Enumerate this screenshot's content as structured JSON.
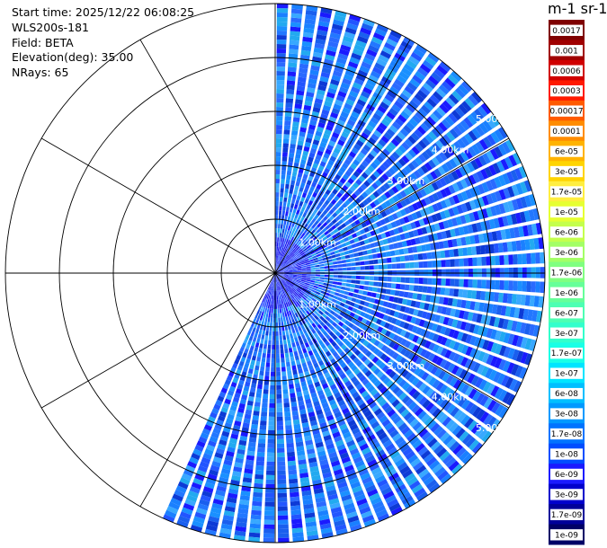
{
  "info": {
    "start_time": "Start time: 2025/12/22 06:08:25",
    "instrument": "WLS200s-181",
    "field": "Field: BETA",
    "elevation": "Elevation(deg): 35.00",
    "nrays": "NRays: 65"
  },
  "chart_data": {
    "type": "heatmap",
    "projection": "polar-ppi",
    "nrays": 65,
    "azimuth_range_deg": [
      0,
      205
    ],
    "max_range_km": 5.0,
    "range_ring_labels": [
      "1.00km",
      "2.00km",
      "3.00km",
      "4.00km",
      "5.00km"
    ],
    "grid": true,
    "colorbar_title": "m-1 sr-1",
    "colorbar_ticks": [
      "0.0017",
      "0.001",
      "0.0006",
      "0.0003",
      "0.00017",
      "0.0001",
      "6e-05",
      "3e-05",
      "1.7e-05",
      "1e-05",
      "6e-06",
      "3e-06",
      "1.7e-06",
      "1e-06",
      "6e-07",
      "3e-07",
      "1.7e-07",
      "1e-07",
      "6e-08",
      "3e-08",
      "1.7e-08",
      "1e-08",
      "6e-09",
      "3e-09",
      "1.7e-09",
      "1e-09"
    ],
    "colorbar_colors": [
      "#7f0000",
      "#a00000",
      "#d00000",
      "#ff1a00",
      "#ff5a00",
      "#ff8c00",
      "#ffb300",
      "#ffd400",
      "#ffee40",
      "#e6ff33",
      "#c4ff4d",
      "#a3ff66",
      "#80ff80",
      "#66ff99",
      "#4dffb3",
      "#33ffcc",
      "#1affe6",
      "#00e5ff",
      "#00bfff",
      "#0099ff",
      "#0073ff",
      "#004dff",
      "#1a1aff",
      "#0000cc",
      "#000099",
      "#000066"
    ],
    "dominant_value_range": [
      "1e-09",
      "6e-08"
    ]
  }
}
